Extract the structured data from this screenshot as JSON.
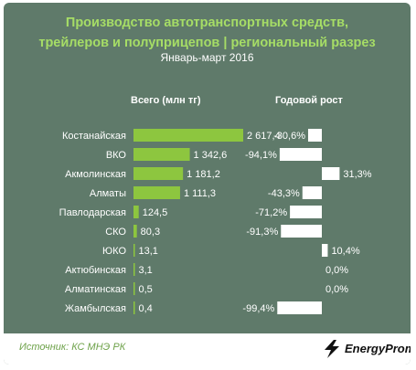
{
  "header": {
    "title_line1": "Производство автотранспортных средств,",
    "title_line2": "трейлеров и полуприцепов | региональный разрез",
    "subtitle": "Январь-март 2016"
  },
  "columns": {
    "total": "Всего (млн тг)",
    "growth": "Годовой рост"
  },
  "footer": {
    "source": "Источник: КС МНЭ РК",
    "brand": "EnergyProm"
  },
  "colors": {
    "background": "#5f7a6a",
    "bar": "#8dc63f",
    "growth_bar": "#ffffff",
    "title": "#a6dd66"
  },
  "chart_data": {
    "type": "bar",
    "categories": [
      "Костанайская",
      "ВКО",
      "Акмолинская",
      "Алматы",
      "Павлодарская",
      "СКО",
      "ЮКО",
      "Актюбинская",
      "Алматинская",
      "Жамбылская"
    ],
    "series": [
      {
        "name": "Всего (млн тг)",
        "values": [
          2617.4,
          1342.6,
          1181.2,
          1111.3,
          124.5,
          80.3,
          13.1,
          3.1,
          0.5,
          0.4
        ],
        "labels": [
          "2 617,4",
          "1 342,6",
          "1 181,2",
          "1 111,3",
          "124,5",
          "80,3",
          "13,1",
          "3,1",
          "0,5",
          "0,4"
        ]
      },
      {
        "name": "Годовой рост",
        "values": [
          -30.6,
          -94.1,
          31.3,
          -43.3,
          -71.2,
          -91.3,
          10.4,
          0.0,
          0.0,
          -99.4
        ],
        "labels": [
          "-30,6%",
          "-94,1%",
          "31,3%",
          "-43,3%",
          "-71,2%",
          "-91,3%",
          "10,4%",
          "0,0%",
          "0,0%",
          "-99,4%"
        ]
      }
    ]
  }
}
